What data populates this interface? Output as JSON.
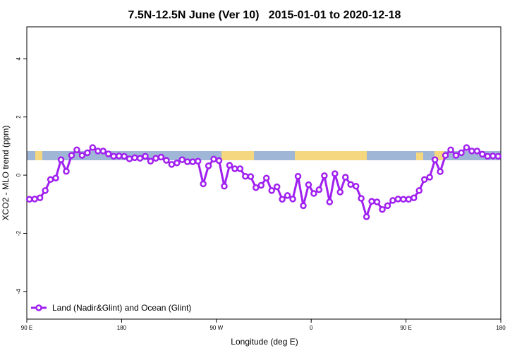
{
  "chart_data": {
    "type": "line",
    "title": "7.5N-12.5N June (Ver 10)   2015-01-01 to 2020-12-18",
    "xlabel": "Longitude (deg E)",
    "ylabel": "XCO2 - MLO trend (ppm)",
    "xlim": [
      90,
      540
    ],
    "ylim": [
      -4.95,
      5.1
    ],
    "xticks": [
      {
        "value": 90,
        "label": "90 E"
      },
      180,
      {
        "value": 270,
        "label": "90 W"
      },
      {
        "value": 360,
        "label": "0"
      },
      {
        "value": 450,
        "label": "90 E"
      },
      {
        "value": 540,
        "label": "180"
      }
    ],
    "yticks": [
      -4,
      -2,
      0,
      2,
      4
    ],
    "legend": "bottomleft",
    "x": [
      92.5,
      97.5,
      102.5,
      107.5,
      112.5,
      117.5,
      122.5,
      127.5,
      132.5,
      137.5,
      142.5,
      147.5,
      152.5,
      157.5,
      162.5,
      167.5,
      172.5,
      177.5,
      182.5,
      187.5,
      192.5,
      197.5,
      202.5,
      207.5,
      212.5,
      217.5,
      222.5,
      227.5,
      232.5,
      237.5,
      242.5,
      247.5,
      252.5,
      257.5,
      262.5,
      267.5,
      272.5,
      277.5,
      282.5,
      287.5,
      292.5,
      297.5,
      302.5,
      307.5,
      312.5,
      317.5,
      322.5,
      327.5,
      332.5,
      337.5,
      342.5,
      347.5,
      352.5,
      357.5,
      362.5,
      367.5,
      372.5,
      377.5,
      382.5,
      387.5,
      392.5,
      397.5,
      402.5,
      407.5,
      412.5,
      417.5,
      422.5,
      427.5,
      432.5,
      437.5,
      442.5,
      447.5,
      452.5,
      457.5,
      462.5,
      467.5,
      472.5,
      477.5,
      482.5,
      487.5,
      492.5,
      497.5,
      502.5,
      507.5,
      512.5,
      517.5,
      522.5,
      527.5,
      532.5,
      537.5
    ],
    "series": [
      {
        "name": "Land (Nadir&Glint) and Ocean (Glint)",
        "color": "#a020f0",
        "values": [
          -0.83,
          -0.82,
          -0.78,
          -0.53,
          -0.15,
          -0.1,
          0.53,
          0.13,
          0.68,
          0.87,
          0.68,
          0.77,
          0.95,
          0.83,
          0.83,
          0.73,
          0.65,
          0.66,
          0.65,
          0.56,
          0.6,
          0.58,
          0.65,
          0.48,
          0.58,
          0.62,
          0.51,
          0.37,
          0.42,
          0.53,
          0.46,
          0.46,
          0.48,
          -0.3,
          0.32,
          0.55,
          0.5,
          -0.38,
          0.34,
          0.22,
          0.22,
          -0.04,
          -0.05,
          -0.43,
          -0.35,
          -0.1,
          -0.53,
          -0.4,
          -0.83,
          -0.7,
          -0.82,
          -0.04,
          -1.05,
          -0.33,
          -0.63,
          -0.5,
          -0.02,
          -0.92,
          0.05,
          -0.58,
          -0.07,
          -0.32,
          -0.38,
          -0.8,
          -1.43,
          -0.9,
          -0.92,
          -1.18,
          -1.05,
          -0.87,
          -0.82,
          -0.83,
          -0.83,
          -0.78,
          -0.53,
          -0.15,
          -0.07,
          0.53,
          0.12,
          0.68,
          0.87,
          0.68,
          0.77,
          0.95,
          0.83,
          0.83,
          0.72,
          0.65,
          0.66,
          0.65
        ]
      }
    ]
  }
}
